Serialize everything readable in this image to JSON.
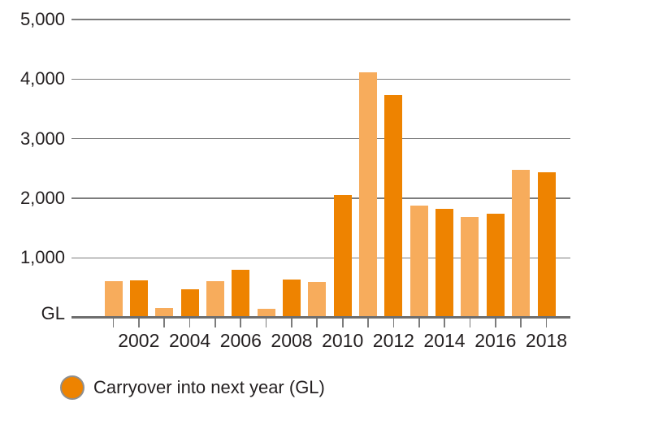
{
  "chart_data": {
    "type": "bar",
    "title": "",
    "unit": "GL",
    "legend_label": "Carryover into next year (GL)",
    "legend_position": "bottom-left",
    "grid": true,
    "ylim": [
      0,
      5000
    ],
    "yticks": [
      {
        "value": 5000,
        "label": "5,000"
      },
      {
        "value": 4000,
        "label": "4,000"
      },
      {
        "value": 3000,
        "label": "3,000"
      },
      {
        "value": 2000,
        "label": "2,000"
      },
      {
        "value": 1000,
        "label": "1,000"
      },
      {
        "value": 0,
        "label": "GL"
      }
    ],
    "xtick_labeled_years": [
      2002,
      2004,
      2006,
      2008,
      2010,
      2012,
      2014,
      2016,
      2018
    ],
    "bars": [
      {
        "year": 2001,
        "value": 610,
        "shade": "light"
      },
      {
        "year": 2002,
        "value": 620,
        "shade": "dark"
      },
      {
        "year": 2003,
        "value": 160,
        "shade": "light"
      },
      {
        "year": 2004,
        "value": 480,
        "shade": "dark"
      },
      {
        "year": 2005,
        "value": 610,
        "shade": "light"
      },
      {
        "year": 2006,
        "value": 800,
        "shade": "dark"
      },
      {
        "year": 2007,
        "value": 150,
        "shade": "light"
      },
      {
        "year": 2008,
        "value": 640,
        "shade": "dark"
      },
      {
        "year": 2009,
        "value": 590,
        "shade": "light"
      },
      {
        "year": 2010,
        "value": 2050,
        "shade": "dark"
      },
      {
        "year": 2011,
        "value": 4120,
        "shade": "light"
      },
      {
        "year": 2012,
        "value": 3730,
        "shade": "dark"
      },
      {
        "year": 2013,
        "value": 1880,
        "shade": "light"
      },
      {
        "year": 2014,
        "value": 1820,
        "shade": "dark"
      },
      {
        "year": 2015,
        "value": 1690,
        "shade": "light"
      },
      {
        "year": 2016,
        "value": 1740,
        "shade": "dark"
      },
      {
        "year": 2017,
        "value": 2480,
        "shade": "light"
      },
      {
        "year": 2018,
        "value": 2440,
        "shade": "dark"
      }
    ],
    "colors": {
      "bar_light": "#F7AC5C",
      "bar_dark": "#EE8300",
      "gridline": "#7C7C7C",
      "axis": "#6E6E6E",
      "text": "#231F20",
      "legend_marker_fill": "#EE8300",
      "legend_marker_border": "#8F8F8F"
    }
  }
}
